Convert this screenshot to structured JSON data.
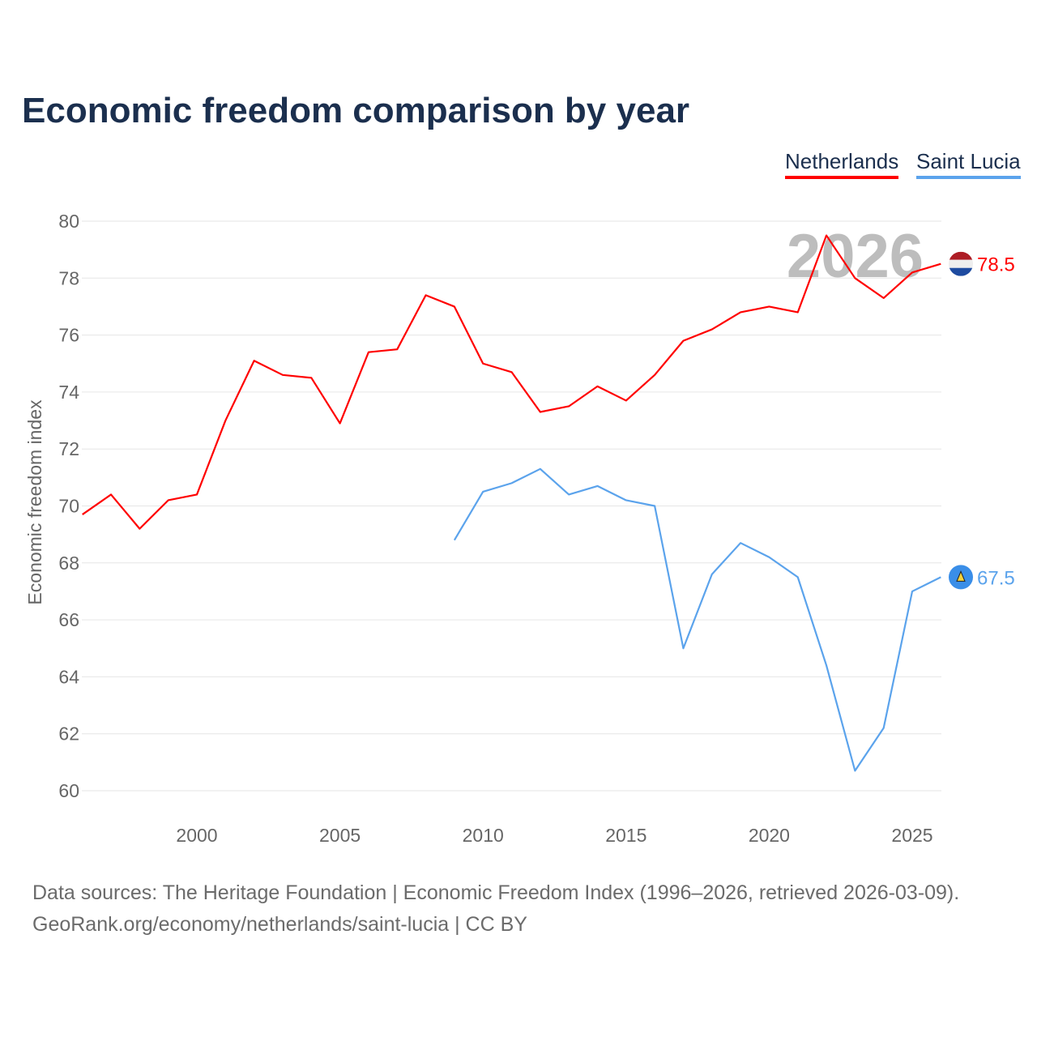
{
  "title": "Economic freedom comparison by year",
  "watermark_year": "2026",
  "source_line1": "Data sources: The Heritage Foundation | Economic Freedom Index (1996–2026, retrieved 2026-03-09).",
  "source_line2": "GeoRank.org/economy/netherlands/saint-lucia | CC BY",
  "chart_data": {
    "type": "line",
    "title": "Economic freedom comparison by year",
    "xlabel": "",
    "ylabel": "Economic freedom index",
    "xlim": [
      1996,
      2026
    ],
    "ylim": [
      59,
      81
    ],
    "yticks": [
      60,
      62,
      64,
      66,
      68,
      70,
      72,
      74,
      76,
      78,
      80
    ],
    "xticks": [
      2000,
      2005,
      2010,
      2015,
      2020,
      2025
    ],
    "grid": true,
    "legend_position": "top-right",
    "series": [
      {
        "name": "Netherlands",
        "color": "#ff0000",
        "end_label": "78.5",
        "x": [
          1996,
          1997,
          1998,
          1999,
          2000,
          2001,
          2002,
          2003,
          2004,
          2005,
          2006,
          2007,
          2008,
          2009,
          2010,
          2011,
          2012,
          2013,
          2014,
          2015,
          2016,
          2017,
          2018,
          2019,
          2020,
          2021,
          2022,
          2023,
          2024,
          2025,
          2026
        ],
        "values": [
          69.7,
          70.4,
          69.2,
          70.2,
          70.4,
          73.0,
          75.1,
          74.6,
          74.5,
          72.9,
          75.4,
          75.5,
          77.4,
          77.0,
          75.0,
          74.7,
          73.3,
          73.5,
          74.2,
          73.7,
          74.6,
          75.8,
          76.2,
          76.8,
          77.0,
          76.8,
          79.5,
          78.0,
          77.3,
          78.2,
          78.5
        ]
      },
      {
        "name": "Saint Lucia",
        "color": "#5ba3ec",
        "end_label": "67.5",
        "x": [
          2009,
          2010,
          2011,
          2012,
          2013,
          2014,
          2015,
          2016,
          2017,
          2018,
          2019,
          2020,
          2021,
          2022,
          2023,
          2024,
          2025,
          2026
        ],
        "values": [
          68.8,
          70.5,
          70.8,
          71.3,
          70.4,
          70.7,
          70.2,
          70.0,
          65.0,
          67.6,
          68.7,
          68.2,
          67.5,
          64.4,
          60.7,
          62.2,
          67.0,
          67.5
        ]
      }
    ]
  }
}
